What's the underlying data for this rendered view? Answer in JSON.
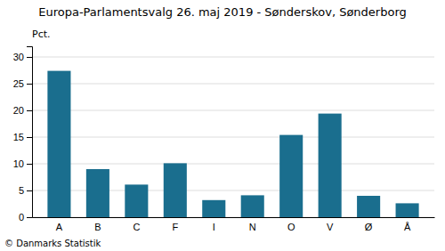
{
  "chart_data": {
    "type": "bar",
    "title": "Europa-Parlamentsvalg 26. maj 2019 - Sønderskov, Sønderborg",
    "ylabel": "Pct.",
    "footnote": "© Danmarks Statistik",
    "categories": [
      "A",
      "B",
      "C",
      "F",
      "I",
      "N",
      "O",
      "V",
      "Ø",
      "Å"
    ],
    "values": [
      27.4,
      9.0,
      6.1,
      10.1,
      3.2,
      4.1,
      15.4,
      19.4,
      4.0,
      2.6
    ],
    "color": "#1a6e8e",
    "ylim": [
      0,
      32
    ],
    "yticks": [
      0,
      5,
      10,
      15,
      20,
      25,
      30
    ],
    "grid": true
  }
}
